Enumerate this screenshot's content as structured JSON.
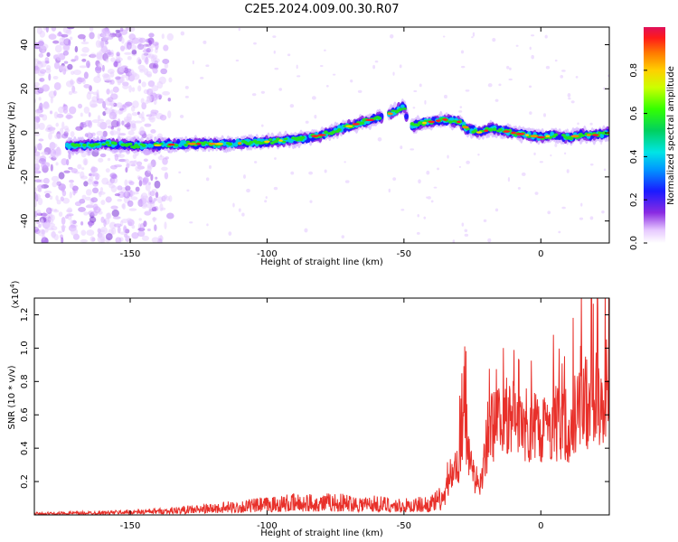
{
  "title": "C2E5.2024.009.00.30.R07",
  "chart_data": [
    {
      "type": "heatmap",
      "xlabel": "Height of straight line (km)",
      "ylabel": "Frequency (Hz)",
      "xlim": [
        -185,
        25
      ],
      "ylim": [
        -50,
        48
      ],
      "xticks": [
        -150,
        -100,
        -50,
        0
      ],
      "yticks": [
        -40,
        -20,
        0,
        20,
        40
      ],
      "colorbar": {
        "label": "Normalized spectral amplitude",
        "range": [
          0,
          1
        ],
        "ticks": [
          "0.0",
          "0.2",
          "0.4",
          "0.6",
          "0.8"
        ],
        "tick_values": [
          0,
          0.2,
          0.4,
          0.6,
          0.8
        ]
      },
      "ridge_x": [
        -172,
        -160,
        -145,
        -130,
        -115,
        -100,
        -90,
        -80,
        -70,
        -62,
        -56,
        -50,
        -48,
        -45,
        -40,
        -35,
        -30,
        -27,
        -22,
        -18,
        -10,
        -5,
        0,
        5,
        10,
        15,
        20,
        25
      ],
      "ridge_y": [
        -6,
        -5,
        -6,
        -5,
        -5,
        -4,
        -3,
        -1,
        3,
        6,
        8,
        12,
        3,
        4,
        5,
        6,
        5,
        2,
        0,
        2,
        0,
        -1,
        -2,
        -1,
        -2,
        -1,
        -1,
        0
      ]
    },
    {
      "type": "line",
      "xlabel": "Height of straight line (km)",
      "ylabel": "SNR (10 * v/v)",
      "ylabel_multiplier": "(x10",
      "ylabel_multiplier_exp": "4",
      "ylabel_multiplier_close": ")",
      "xlim": [
        -185,
        25
      ],
      "ylim": [
        0,
        13000
      ],
      "xticks": [
        -150,
        -100,
        -50,
        0
      ],
      "yticks": [
        2000,
        4000,
        6000,
        8000,
        10000,
        12000
      ],
      "ytick_labels": [
        "0.2",
        "0.4",
        "0.6",
        "0.8",
        "1.0",
        "1.2"
      ],
      "color": "#e8302a",
      "envelope_x": [
        -185,
        -160,
        -140,
        -120,
        -100,
        -90,
        -80,
        -70,
        -60,
        -50,
        -40,
        -35,
        -30,
        -28,
        -26,
        -24,
        -22,
        -20,
        -15,
        -10,
        -5,
        0,
        5,
        10,
        15,
        20,
        25
      ],
      "envelope_y": [
        150,
        250,
        400,
        700,
        1100,
        1300,
        1350,
        1300,
        1200,
        1000,
        1200,
        2000,
        4500,
        8000,
        5500,
        3000,
        2500,
        6000,
        8500,
        8000,
        7800,
        7500,
        8000,
        7500,
        9500,
        10000,
        11000
      ]
    }
  ]
}
